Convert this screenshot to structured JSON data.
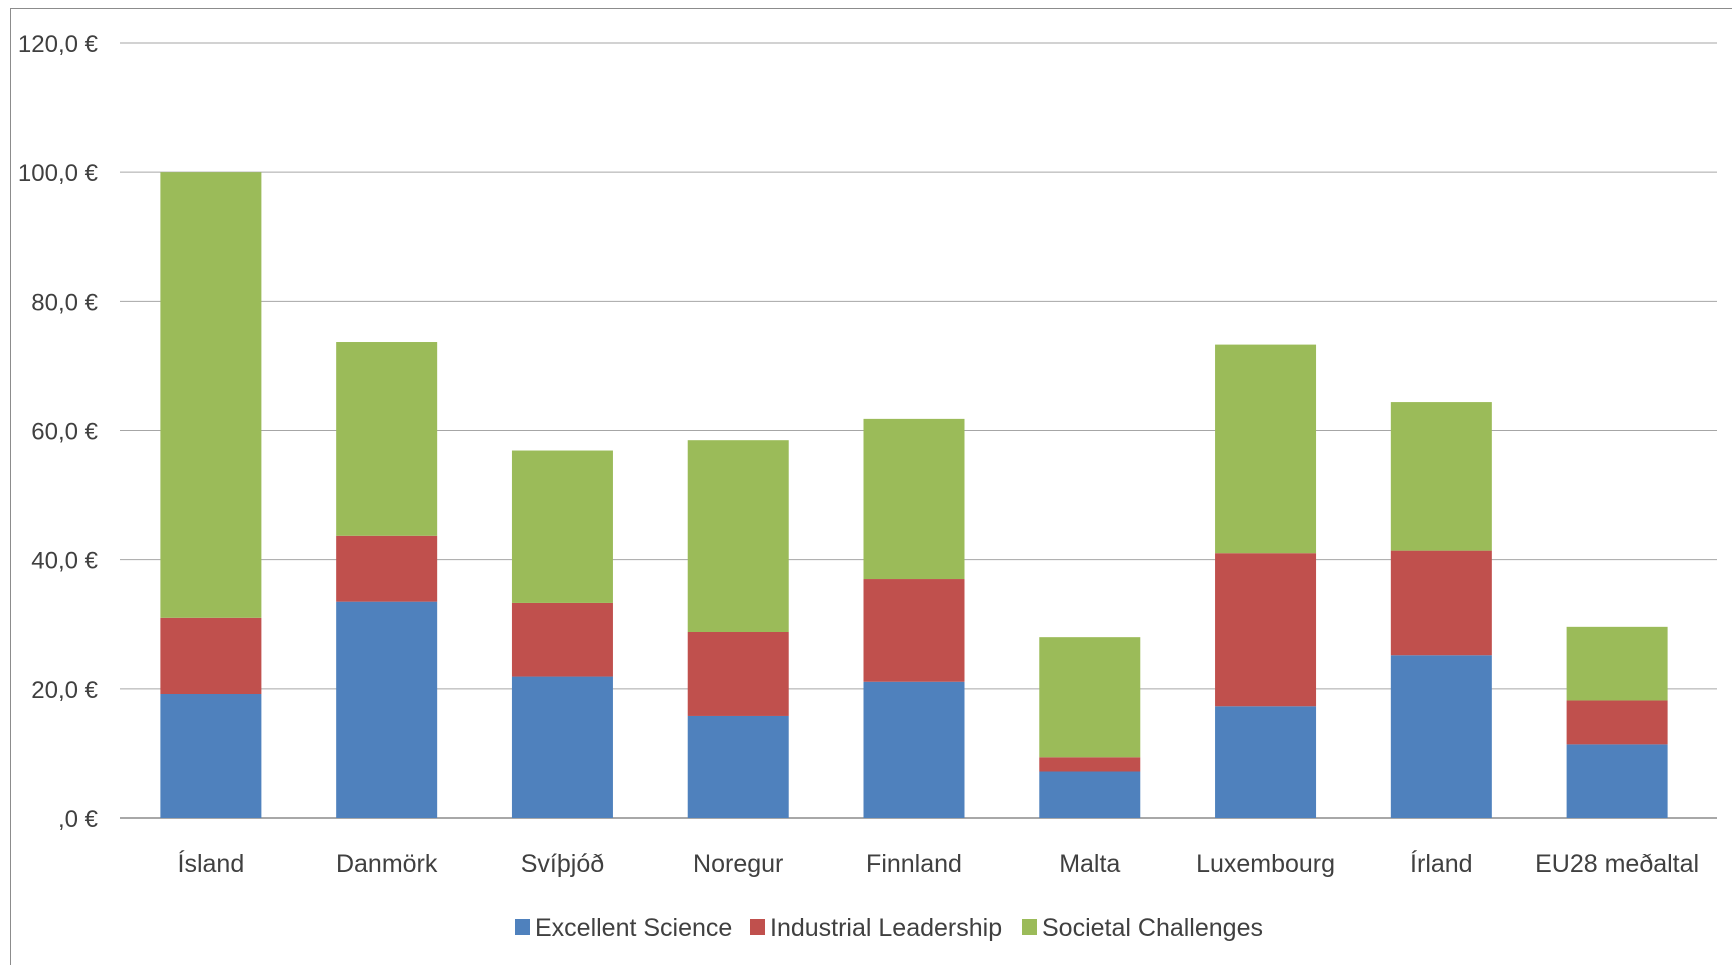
{
  "chart_data": {
    "type": "bar",
    "stacked": true,
    "categories": [
      "Ísland",
      "Danmörk",
      "Svíþjóð",
      "Noregur",
      "Finnland",
      "Malta",
      "Luxembourg",
      "Írland",
      "EU28 meðaltal"
    ],
    "series": [
      {
        "name": "Excellent Science",
        "color": "#4f81bd",
        "values": [
          19.2,
          33.5,
          21.9,
          15.8,
          21.1,
          7.2,
          17.3,
          25.2,
          11.4
        ]
      },
      {
        "name": "Industrial Leadership",
        "color": "#c0504d",
        "values": [
          11.8,
          10.2,
          11.4,
          13.0,
          15.9,
          2.2,
          23.7,
          16.2,
          6.8
        ]
      },
      {
        "name": "Societal Challenges",
        "color": "#9bbb59",
        "values": [
          69.0,
          30.0,
          23.6,
          29.7,
          24.8,
          18.6,
          32.3,
          23.0,
          11.4
        ]
      }
    ],
    "yaxis": {
      "min": 0,
      "max": 120,
      "ticks": [
        0,
        20,
        40,
        60,
        80,
        100,
        120
      ],
      "tick_labels": [
        ",0 €",
        "20,0 €",
        "40,0 €",
        "60,0 €",
        "80,0 €",
        "100,0 €",
        "120,0 €"
      ]
    },
    "title": "",
    "xlabel": "",
    "ylabel": "",
    "grid": true,
    "legend_position": "bottom"
  }
}
